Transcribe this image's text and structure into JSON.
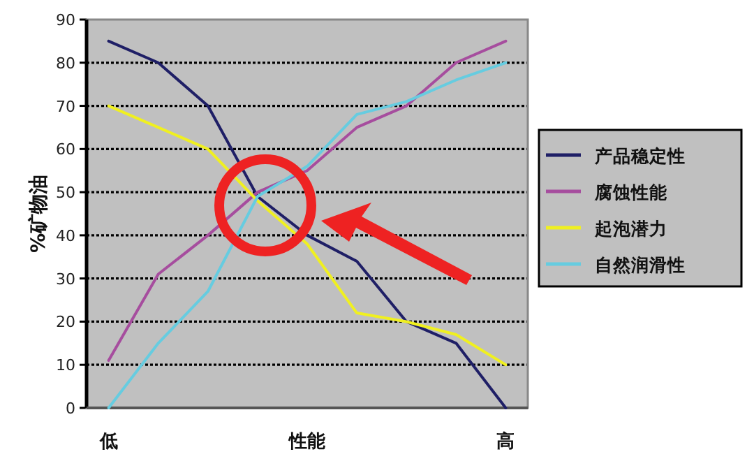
{
  "chart_data": {
    "type": "line",
    "ylabel": "%矿物油",
    "categories": [
      "低",
      null,
      null,
      null,
      "性能",
      null,
      null,
      null,
      "高"
    ],
    "ylim": [
      0,
      90
    ],
    "yticks": [
      0,
      10,
      20,
      30,
      40,
      50,
      60,
      70,
      80,
      90
    ],
    "grid": "y",
    "legend": "right",
    "marker": "none",
    "line_style": "solid",
    "series": [
      {
        "name": "产品稳定性",
        "color": "#1f1f66",
        "values": [
          85,
          80,
          70,
          49,
          40,
          34,
          20,
          15,
          0
        ]
      },
      {
        "name": "腐蚀性能",
        "color": "#a64d9e",
        "values": [
          11,
          31,
          40,
          50,
          55,
          65,
          70,
          80,
          85
        ]
      },
      {
        "name": "起泡潜力",
        "color": "#f0f020",
        "values": [
          70,
          65,
          60,
          48,
          38,
          22,
          20,
          17,
          10
        ]
      },
      {
        "name": "自然润滑性",
        "color": "#66cce0",
        "values": [
          0,
          15,
          27,
          49,
          56,
          68,
          71,
          76,
          80
        ]
      }
    ]
  }
}
